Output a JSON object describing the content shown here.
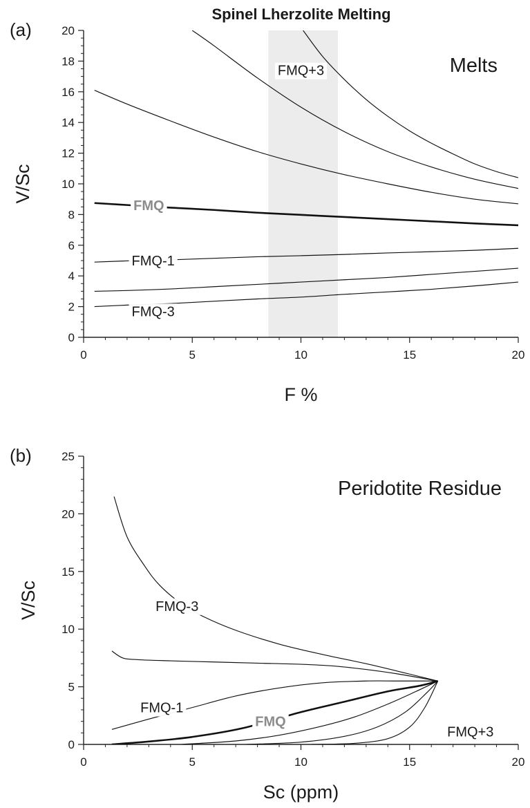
{
  "figure_title": "Spinel Lherzolite Melting",
  "chart_data": [
    {
      "type": "line",
      "panel_label": "(a)",
      "annotation": "Melts",
      "xlabel": "F %",
      "ylabel": "V/Sc",
      "xlim": [
        0,
        20
      ],
      "ylim": [
        0,
        20
      ],
      "x_ticks": [
        0,
        5,
        10,
        15,
        20
      ],
      "y_ticks": [
        0,
        2,
        4,
        6,
        8,
        10,
        12,
        14,
        16,
        18,
        20
      ],
      "grid": false,
      "highlight_band": {
        "x_range": [
          8.5,
          11.7
        ],
        "color": "#ececec"
      },
      "series": [
        {
          "name": "",
          "x": [
            0.5,
            2,
            4,
            6,
            8,
            10,
            12,
            14,
            16,
            18,
            20
          ],
          "y": [
            2.0,
            2.1,
            2.2,
            2.35,
            2.5,
            2.62,
            2.8,
            2.96,
            3.13,
            3.35,
            3.6
          ]
        },
        {
          "name": "FMQ-3",
          "x": [
            0.5,
            2,
            4,
            6,
            8,
            10,
            12,
            14,
            16,
            18,
            20
          ],
          "y": [
            3.0,
            3.05,
            3.15,
            3.3,
            3.45,
            3.6,
            3.75,
            3.9,
            4.1,
            4.3,
            4.5
          ]
        },
        {
          "name": "FMQ-1",
          "x": [
            0.5,
            2,
            4,
            6,
            8,
            10,
            12,
            14,
            16,
            18,
            20
          ],
          "y": [
            4.9,
            4.98,
            5.05,
            5.15,
            5.25,
            5.32,
            5.4,
            5.5,
            5.58,
            5.67,
            5.8
          ]
        },
        {
          "name": "FMQ",
          "bold": true,
          "x": [
            0.5,
            2,
            4,
            6,
            8,
            10,
            12,
            14,
            16,
            18,
            20
          ],
          "y": [
            8.75,
            8.62,
            8.45,
            8.3,
            8.12,
            7.98,
            7.84,
            7.7,
            7.56,
            7.42,
            7.3
          ]
        },
        {
          "name": "",
          "x": [
            0.5,
            2,
            4,
            6,
            8,
            10,
            12,
            14,
            16,
            18,
            20
          ],
          "y": [
            16.1,
            15.2,
            14.1,
            13.05,
            12.1,
            11.3,
            10.6,
            10.0,
            9.45,
            9.0,
            8.7
          ]
        },
        {
          "name": "",
          "x": [
            5,
            6,
            8,
            10,
            12,
            14,
            16,
            18,
            20
          ],
          "y": [
            20.0,
            19.0,
            16.9,
            15.0,
            13.4,
            12.1,
            11.1,
            10.3,
            9.7
          ]
        },
        {
          "name": "FMQ+3",
          "x": [
            10.1,
            11,
            12,
            13,
            14,
            15,
            16,
            17,
            18,
            19,
            20
          ],
          "y": [
            20.0,
            18.3,
            16.8,
            15.5,
            14.4,
            13.45,
            12.65,
            11.95,
            11.3,
            10.8,
            10.4
          ]
        }
      ],
      "curve_labels": [
        {
          "text": "FMQ+3",
          "x": 10.0,
          "y": 17.4
        },
        {
          "text": "FMQ",
          "x": 3.0,
          "y": 8.6,
          "bold": true
        },
        {
          "text": "FMQ-1",
          "x": 3.2,
          "y": 5.0
        },
        {
          "text": "FMQ-3",
          "x": 3.2,
          "y": 1.7
        }
      ]
    },
    {
      "type": "line",
      "panel_label": "(b)",
      "annotation": "Peridotite Residue",
      "xlabel": "Sc (ppm)",
      "ylabel": "V/Sc",
      "xlim": [
        0,
        20
      ],
      "ylim": [
        0,
        25
      ],
      "x_ticks": [
        0,
        5,
        10,
        15,
        20
      ],
      "y_ticks": [
        0,
        5,
        10,
        15,
        20,
        25
      ],
      "grid": false,
      "series": [
        {
          "name": "FMQ-3",
          "x": [
            1.4,
            2.0,
            2.8,
            3.5,
            4.5,
            5.5,
            7,
            9,
            11,
            13,
            15,
            16.3
          ],
          "y": [
            21.5,
            18.0,
            15.5,
            13.8,
            12.2,
            11.1,
            9.9,
            8.7,
            7.8,
            7.0,
            6.1,
            5.5
          ]
        },
        {
          "name": "",
          "x": [
            1.3,
            1.8,
            2.5,
            4,
            6,
            8,
            10,
            11.5,
            13,
            14.5,
            16.3
          ],
          "y": [
            8.1,
            7.5,
            7.35,
            7.25,
            7.15,
            7.05,
            6.95,
            6.8,
            6.5,
            6.1,
            5.5
          ]
        },
        {
          "name": "FMQ-1",
          "x": [
            1.3,
            3,
            5,
            7,
            9,
            11,
            13,
            14.5,
            16.3
          ],
          "y": [
            1.3,
            2.2,
            3.2,
            4.2,
            4.9,
            5.35,
            5.5,
            5.5,
            5.5
          ]
        },
        {
          "name": "FMQ",
          "bold": true,
          "x": [
            1.3,
            3,
            5,
            7.3,
            10,
            12,
            14,
            15.5,
            16.3
          ],
          "y": [
            0.0,
            0.25,
            0.65,
            1.4,
            2.8,
            3.7,
            4.6,
            5.1,
            5.5
          ]
        },
        {
          "name": "",
          "x": [
            4.5,
            7,
            9,
            11,
            12.5,
            14,
            15.3,
            16.3
          ],
          "y": [
            0.0,
            0.3,
            0.8,
            1.6,
            2.4,
            3.5,
            4.6,
            5.5
          ]
        },
        {
          "name": "",
          "x": [
            7.5,
            10,
            12,
            13.5,
            14.8,
            15.8,
            16.3
          ],
          "y": [
            0.0,
            0.2,
            0.7,
            1.5,
            2.8,
            4.5,
            5.5
          ]
        },
        {
          "name": "FMQ+3",
          "x": [
            10.5,
            12.5,
            14,
            15.0,
            15.7,
            16.3
          ],
          "y": [
            0.0,
            0.1,
            0.5,
            1.5,
            3.2,
            5.5
          ]
        }
      ],
      "curve_labels": [
        {
          "text": "FMQ-3",
          "x": 4.3,
          "y": 12.0
        },
        {
          "text": "FMQ-1",
          "x": 3.6,
          "y": 3.2
        },
        {
          "text": "FMQ",
          "x": 8.6,
          "y": 2.0,
          "bold": true
        },
        {
          "text": "FMQ+3",
          "x": 17.8,
          "y": 1.1
        }
      ]
    }
  ]
}
